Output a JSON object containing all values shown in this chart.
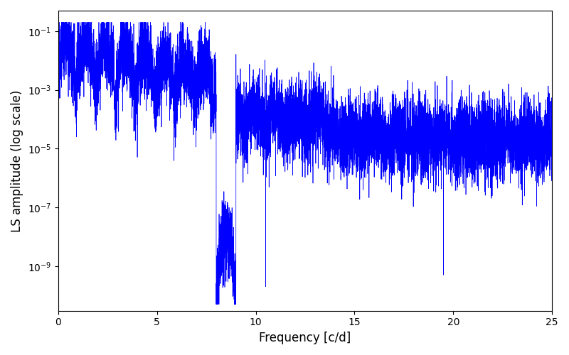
{
  "title": "",
  "xlabel": "Frequency [c/d]",
  "ylabel": "LS amplitude (log scale)",
  "xmin": 0,
  "xmax": 25,
  "ymin": 3e-11,
  "ymax": 0.5,
  "line_color": "#0000ff",
  "line_width": 0.5,
  "yscale": "log",
  "background_color": "#ffffff",
  "figsize": [
    8.0,
    5.0
  ],
  "dpi": 100,
  "seed": 12345,
  "n_points": 10000,
  "freq_max": 25.0
}
